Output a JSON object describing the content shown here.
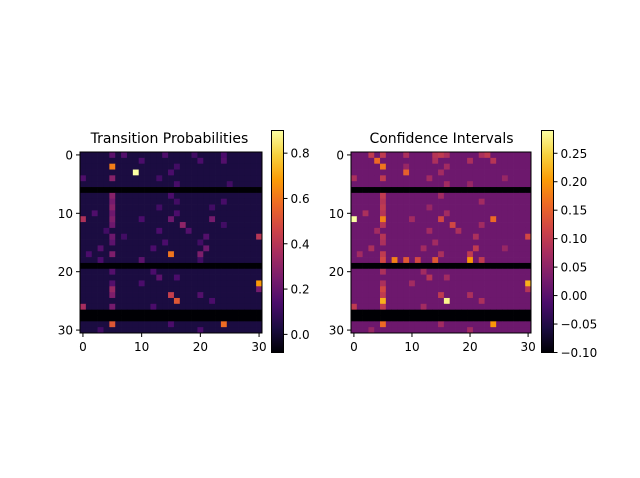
{
  "figure": {
    "background": "#ffffff"
  },
  "colormap": {
    "name": "inferno",
    "stops": [
      "#000004",
      "#1b0c41",
      "#4a0c6b",
      "#781c6d",
      "#a52c60",
      "#cf4446",
      "#ed6925",
      "#fb9b06",
      "#f7d13d",
      "#fcffa4"
    ]
  },
  "chart_data": [
    {
      "type": "heatmap",
      "title": "Transition Probabilities",
      "rows": 31,
      "cols": 31,
      "xticks": [
        0,
        10,
        20,
        30
      ],
      "xtick_labels": [
        "0",
        "10",
        "20",
        "30"
      ],
      "yticks": [
        0,
        10,
        20,
        30
      ],
      "ytick_labels": [
        "0",
        "10",
        "20",
        "30"
      ],
      "vmin": -0.08,
      "vmax": 0.9,
      "colorbar_ticks": [
        0.0,
        0.2,
        0.4,
        0.6,
        0.8
      ],
      "colorbar_labels": [
        "0.0",
        "0.2",
        "0.4",
        "0.6",
        "0.8"
      ],
      "baseline": 0.03,
      "empty_rows": [
        6,
        19,
        27,
        28
      ],
      "empty_value": -0.08,
      "cells": [
        [
          0,
          5,
          0.18
        ],
        [
          0,
          7,
          0.16
        ],
        [
          0,
          14,
          0.15
        ],
        [
          0,
          19,
          0.12
        ],
        [
          0,
          24,
          0.14
        ],
        [
          1,
          10,
          0.14
        ],
        [
          1,
          20,
          0.14
        ],
        [
          1,
          24,
          0.16
        ],
        [
          2,
          5,
          0.62
        ],
        [
          2,
          16,
          0.12
        ],
        [
          3,
          9,
          0.9
        ],
        [
          3,
          15,
          0.14
        ],
        [
          4,
          0,
          0.15
        ],
        [
          4,
          5,
          0.28
        ],
        [
          4,
          13,
          0.12
        ],
        [
          5,
          16,
          0.13
        ],
        [
          5,
          25,
          0.12
        ],
        [
          7,
          5,
          0.28
        ],
        [
          7,
          15,
          0.14
        ],
        [
          8,
          5,
          0.24
        ],
        [
          8,
          16,
          0.12
        ],
        [
          8,
          24,
          0.13
        ],
        [
          9,
          5,
          0.28
        ],
        [
          9,
          13,
          0.12
        ],
        [
          9,
          22,
          0.12
        ],
        [
          10,
          2,
          0.15
        ],
        [
          10,
          5,
          0.22
        ],
        [
          10,
          16,
          0.14
        ],
        [
          11,
          0,
          0.38
        ],
        [
          11,
          5,
          0.26
        ],
        [
          11,
          10,
          0.14
        ],
        [
          11,
          15,
          0.22
        ],
        [
          11,
          22,
          0.24
        ],
        [
          12,
          5,
          0.22
        ],
        [
          12,
          17,
          0.3
        ],
        [
          12,
          24,
          0.12
        ],
        [
          13,
          4,
          0.12
        ],
        [
          13,
          13,
          0.14
        ],
        [
          13,
          18,
          0.16
        ],
        [
          14,
          5,
          0.22
        ],
        [
          14,
          7,
          0.12
        ],
        [
          14,
          21,
          0.16
        ],
        [
          14,
          30,
          0.4
        ],
        [
          15,
          5,
          0.18
        ],
        [
          15,
          14,
          0.14
        ],
        [
          15,
          20,
          0.12
        ],
        [
          16,
          3,
          0.16
        ],
        [
          16,
          12,
          0.14
        ],
        [
          16,
          21,
          0.22
        ],
        [
          17,
          1,
          0.14
        ],
        [
          17,
          5,
          0.26
        ],
        [
          17,
          15,
          0.6
        ],
        [
          17,
          20,
          0.26
        ],
        [
          18,
          3,
          0.14
        ],
        [
          18,
          10,
          0.18
        ],
        [
          18,
          20,
          0.12
        ],
        [
          20,
          5,
          0.16
        ],
        [
          20,
          12,
          0.14
        ],
        [
          21,
          13,
          0.18
        ],
        [
          21,
          16,
          0.14
        ],
        [
          22,
          5,
          0.16
        ],
        [
          22,
          10,
          0.14
        ],
        [
          22,
          30,
          0.68
        ],
        [
          23,
          5,
          0.32
        ],
        [
          23,
          30,
          0.24
        ],
        [
          24,
          5,
          0.26
        ],
        [
          24,
          15,
          0.44
        ],
        [
          24,
          20,
          0.16
        ],
        [
          25,
          16,
          0.52
        ],
        [
          25,
          22,
          0.14
        ],
        [
          26,
          0,
          0.36
        ],
        [
          26,
          5,
          0.24
        ],
        [
          26,
          12,
          0.14
        ],
        [
          29,
          5,
          0.52
        ],
        [
          29,
          24,
          0.58
        ],
        [
          29,
          15,
          0.14
        ],
        [
          30,
          3,
          0.12
        ],
        [
          30,
          20,
          0.14
        ]
      ]
    },
    {
      "type": "heatmap",
      "title": "Confidence Intervals",
      "rows": 31,
      "cols": 31,
      "xticks": [
        0,
        10,
        20,
        30
      ],
      "xtick_labels": [
        "0",
        "10",
        "20",
        "30"
      ],
      "yticks": [
        0,
        10,
        20,
        30
      ],
      "ytick_labels": [
        "0",
        "10",
        "20",
        "30"
      ],
      "vmin": -0.1,
      "vmax": 0.29,
      "colorbar_ticks": [
        -0.1,
        -0.05,
        0.0,
        0.05,
        0.1,
        0.15,
        0.2,
        0.25
      ],
      "colorbar_labels": [
        "−0.10",
        "−0.05",
        "0.00",
        "0.05",
        "0.10",
        "0.15",
        "0.20",
        "0.25"
      ],
      "baseline": 0.02,
      "empty_rows": [
        6,
        19,
        27,
        28
      ],
      "empty_value": -0.1,
      "cells": [
        [
          0,
          3,
          0.1
        ],
        [
          0,
          5,
          0.1
        ],
        [
          0,
          9,
          0.08
        ],
        [
          0,
          14,
          0.09
        ],
        [
          0,
          15,
          0.1
        ],
        [
          0,
          16,
          0.08
        ],
        [
          0,
          22,
          0.08
        ],
        [
          0,
          23,
          0.1
        ],
        [
          1,
          4,
          0.16
        ],
        [
          1,
          14,
          0.08
        ],
        [
          1,
          20,
          0.08
        ],
        [
          1,
          24,
          0.09
        ],
        [
          2,
          5,
          0.17
        ],
        [
          2,
          9,
          0.06
        ],
        [
          2,
          16,
          0.07
        ],
        [
          3,
          9,
          0.15
        ],
        [
          3,
          15,
          0.07
        ],
        [
          4,
          0,
          0.08
        ],
        [
          4,
          5,
          0.1
        ],
        [
          4,
          13,
          0.07
        ],
        [
          4,
          26,
          0.06
        ],
        [
          5,
          16,
          0.07
        ],
        [
          5,
          20,
          0.06
        ],
        [
          7,
          5,
          0.1
        ],
        [
          7,
          15,
          0.07
        ],
        [
          8,
          5,
          0.09
        ],
        [
          8,
          22,
          0.07
        ],
        [
          9,
          5,
          0.1
        ],
        [
          9,
          13,
          0.06
        ],
        [
          10,
          2,
          0.08
        ],
        [
          10,
          5,
          0.09
        ],
        [
          10,
          16,
          0.07
        ],
        [
          11,
          0,
          0.29
        ],
        [
          11,
          5,
          0.18
        ],
        [
          11,
          10,
          0.07
        ],
        [
          11,
          15,
          0.12
        ],
        [
          11,
          24,
          0.16
        ],
        [
          12,
          5,
          0.09
        ],
        [
          12,
          17,
          0.12
        ],
        [
          12,
          22,
          0.07
        ],
        [
          13,
          4,
          0.07
        ],
        [
          13,
          13,
          0.07
        ],
        [
          13,
          18,
          0.08
        ],
        [
          14,
          5,
          0.09
        ],
        [
          14,
          21,
          0.08
        ],
        [
          14,
          30,
          0.12
        ],
        [
          15,
          5,
          0.08
        ],
        [
          15,
          14,
          0.07
        ],
        [
          16,
          3,
          0.08
        ],
        [
          16,
          12,
          0.07
        ],
        [
          16,
          21,
          0.1
        ],
        [
          16,
          26,
          0.06
        ],
        [
          17,
          1,
          0.07
        ],
        [
          17,
          5,
          0.1
        ],
        [
          17,
          15,
          0.08
        ],
        [
          17,
          20,
          0.1
        ],
        [
          18,
          5,
          0.12
        ],
        [
          18,
          7,
          0.18
        ],
        [
          18,
          9,
          0.14
        ],
        [
          18,
          11,
          0.12
        ],
        [
          18,
          14,
          0.14
        ],
        [
          18,
          20,
          0.2
        ],
        [
          18,
          22,
          0.1
        ],
        [
          20,
          5,
          0.08
        ],
        [
          20,
          12,
          0.07
        ],
        [
          21,
          13,
          0.09
        ],
        [
          21,
          16,
          0.07
        ],
        [
          22,
          5,
          0.08
        ],
        [
          22,
          10,
          0.07
        ],
        [
          22,
          30,
          0.22
        ],
        [
          23,
          5,
          0.12
        ],
        [
          23,
          30,
          0.09
        ],
        [
          24,
          5,
          0.1
        ],
        [
          24,
          15,
          0.1
        ],
        [
          24,
          20,
          0.08
        ],
        [
          25,
          5,
          0.22
        ],
        [
          25,
          16,
          0.28
        ],
        [
          25,
          22,
          0.08
        ],
        [
          26,
          0,
          0.1
        ],
        [
          26,
          5,
          0.1
        ],
        [
          26,
          12,
          0.07
        ],
        [
          29,
          5,
          0.16
        ],
        [
          29,
          24,
          0.2
        ],
        [
          29,
          15,
          0.07
        ],
        [
          30,
          3,
          0.06
        ],
        [
          30,
          20,
          0.07
        ]
      ]
    }
  ]
}
